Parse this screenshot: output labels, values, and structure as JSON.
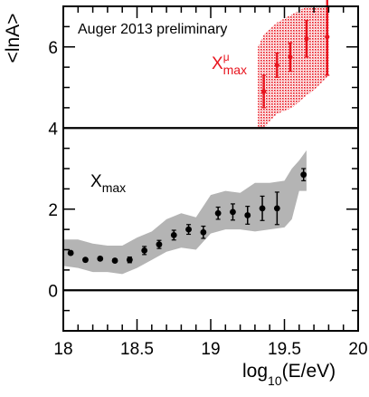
{
  "chart_data": {
    "type": "scatter",
    "annotation": "Auger 2013 preliminary",
    "xlabel": {
      "main": "log",
      "sub": "10",
      "rest": "(E/eV)"
    },
    "ylabel": "<lnA>",
    "xlim": [
      18.0,
      20.0
    ],
    "ylim": [
      -1.0,
      7.0
    ],
    "x_ticks": [
      18,
      18.5,
      19,
      19.5,
      20
    ],
    "x_tick_labels": [
      "18",
      "18.5",
      "19",
      "19.5",
      "20"
    ],
    "y_ticks": [
      0,
      2,
      4,
      6
    ],
    "y_tick_labels": [
      "0",
      "2",
      "4",
      "6"
    ],
    "reference_lines": [
      0,
      4
    ],
    "series": [
      {
        "name": {
          "main": "X",
          "sub": "max",
          "sup": ""
        },
        "color": "#000000",
        "band_color": "#b4b4b4",
        "points": [
          {
            "x": 18.05,
            "y": 0.92,
            "err": 0.04
          },
          {
            "x": 18.15,
            "y": 0.75,
            "err": 0.04
          },
          {
            "x": 18.25,
            "y": 0.78,
            "err": 0.04
          },
          {
            "x": 18.35,
            "y": 0.73,
            "err": 0.04
          },
          {
            "x": 18.45,
            "y": 0.75,
            "err": 0.07
          },
          {
            "x": 18.55,
            "y": 0.98,
            "err": 0.1
          },
          {
            "x": 18.65,
            "y": 1.13,
            "err": 0.1
          },
          {
            "x": 18.75,
            "y": 1.36,
            "err": 0.12
          },
          {
            "x": 18.85,
            "y": 1.5,
            "err": 0.12
          },
          {
            "x": 18.95,
            "y": 1.43,
            "err": 0.15
          },
          {
            "x": 19.05,
            "y": 1.9,
            "err": 0.15
          },
          {
            "x": 19.15,
            "y": 1.93,
            "err": 0.2
          },
          {
            "x": 19.25,
            "y": 1.85,
            "err": 0.22
          },
          {
            "x": 19.35,
            "y": 2.02,
            "err": 0.3
          },
          {
            "x": 19.45,
            "y": 2.02,
            "err": 0.4
          },
          {
            "x": 19.63,
            "y": 2.85,
            "err": 0.15
          }
        ],
        "band": {
          "x": [
            18.0,
            18.1,
            18.2,
            18.3,
            18.4,
            18.5,
            18.6,
            18.7,
            18.8,
            18.9,
            19.0,
            19.1,
            19.2,
            19.3,
            19.4,
            19.5,
            19.55,
            19.6,
            19.65
          ],
          "upper": [
            1.25,
            1.25,
            1.15,
            1.1,
            1.1,
            1.3,
            1.45,
            1.75,
            1.9,
            1.8,
            2.35,
            2.45,
            2.4,
            2.65,
            2.65,
            2.7,
            3.0,
            3.2,
            3.45
          ],
          "lower": [
            0.6,
            0.55,
            0.45,
            0.45,
            0.4,
            0.55,
            0.75,
            0.95,
            1.05,
            1.0,
            1.4,
            1.5,
            1.5,
            1.45,
            1.5,
            1.55,
            1.75,
            2.45,
            2.45
          ]
        }
      },
      {
        "name": {
          "main": "X",
          "sub": "max",
          "sup": "μ"
        },
        "color": "#e8141e",
        "band_color": "#e8141e",
        "points": [
          {
            "x": 19.36,
            "y": 4.9,
            "err": 0.4
          },
          {
            "x": 19.45,
            "y": 5.55,
            "err": 0.3
          },
          {
            "x": 19.54,
            "y": 5.75,
            "err": 0.35
          },
          {
            "x": 19.65,
            "y": 6.2,
            "err": 0.45
          },
          {
            "x": 19.79,
            "y": 6.25,
            "err": 0.95
          }
        ],
        "band": {
          "x": [
            19.32,
            19.36,
            19.45,
            19.55,
            19.65,
            19.72,
            19.8
          ],
          "upper": [
            6.0,
            6.3,
            6.6,
            6.8,
            7.0,
            7.0,
            7.0
          ],
          "lower": [
            4.0,
            4.0,
            4.35,
            4.5,
            4.8,
            5.0,
            5.3
          ]
        }
      }
    ],
    "legend_placement": "inline labels"
  }
}
